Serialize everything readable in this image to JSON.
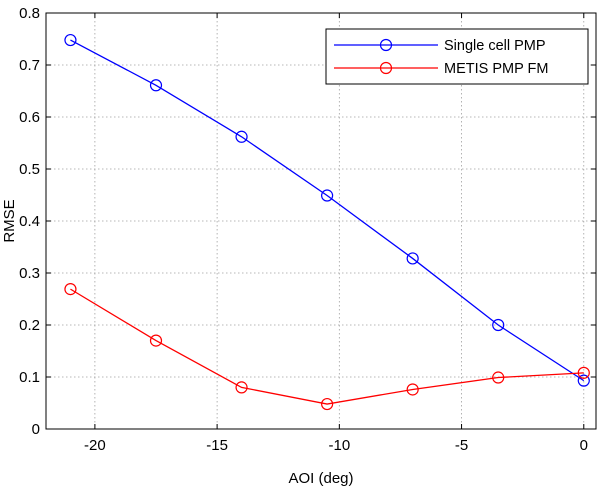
{
  "chart_data": {
    "type": "line",
    "title": "",
    "xlabel": "AOI (deg)",
    "ylabel": "RMSE",
    "xlim": [
      -22,
      0.5
    ],
    "ylim": [
      0,
      0.8
    ],
    "xticks": [
      -20,
      -15,
      -10,
      -5,
      0
    ],
    "xtick_labels": [
      "-20",
      "-15",
      "-10",
      "-5",
      "0"
    ],
    "yticks": [
      0,
      0.1,
      0.2,
      0.3,
      0.4,
      0.5,
      0.6,
      0.7,
      0.8
    ],
    "ytick_labels": [
      "0",
      "0.1",
      "0.2",
      "0.3",
      "0.4",
      "0.5",
      "0.6",
      "0.7",
      "0.8"
    ],
    "grid": true,
    "grid_style": "dotted",
    "legend_position": "top-right",
    "marker": "open-circle",
    "x": [
      -21,
      -17.5,
      -14,
      -10.5,
      -7,
      -3.5,
      0
    ],
    "series": [
      {
        "name": "Single cell PMP",
        "color": "#0000ff",
        "values": [
          0.748,
          0.661,
          0.562,
          0.449,
          0.328,
          0.2,
          0.093
        ]
      },
      {
        "name": "METIS PMP FM",
        "color": "#ff0000",
        "values": [
          0.269,
          0.17,
          0.08,
          0.048,
          0.076,
          0.099,
          0.108
        ]
      }
    ]
  }
}
